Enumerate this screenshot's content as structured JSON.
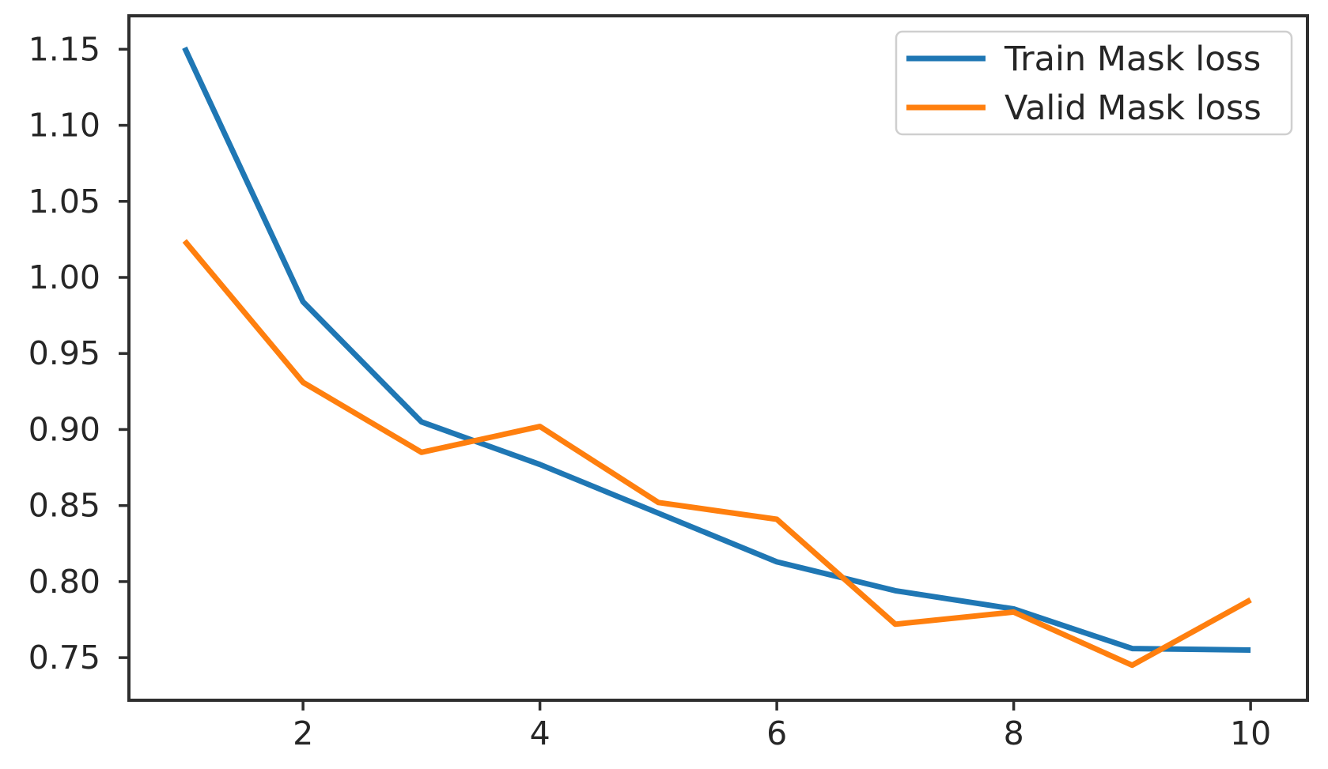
{
  "chart_data": {
    "type": "line",
    "title": "",
    "xlabel": "",
    "ylabel": "",
    "x": [
      1,
      2,
      3,
      4,
      5,
      6,
      7,
      8,
      9,
      10
    ],
    "series": [
      {
        "name": "Train Mask loss",
        "color": "#1f77b4",
        "values": [
          1.151,
          0.984,
          0.905,
          0.877,
          0.845,
          0.813,
          0.794,
          0.782,
          0.756,
          0.755
        ]
      },
      {
        "name": "Valid Mask loss",
        "color": "#ff7f0e",
        "values": [
          1.024,
          0.931,
          0.885,
          0.902,
          0.852,
          0.841,
          0.772,
          0.78,
          0.745,
          0.788
        ]
      }
    ],
    "xlim": [
      0.53,
      10.48
    ],
    "ylim": [
      0.722,
      1.172
    ],
    "xticks": [
      2,
      4,
      6,
      8,
      10
    ],
    "xtick_labels": [
      "2",
      "4",
      "6",
      "8",
      "10"
    ],
    "yticks": [
      0.75,
      0.8,
      0.85,
      0.9,
      0.95,
      1.0,
      1.05,
      1.1,
      1.15
    ],
    "ytick_labels": [
      "0.75",
      "0.80",
      "0.85",
      "0.90",
      "0.95",
      "1.00",
      "1.05",
      "1.10",
      "1.15"
    ],
    "grid": false,
    "legend_position": "upper right"
  }
}
